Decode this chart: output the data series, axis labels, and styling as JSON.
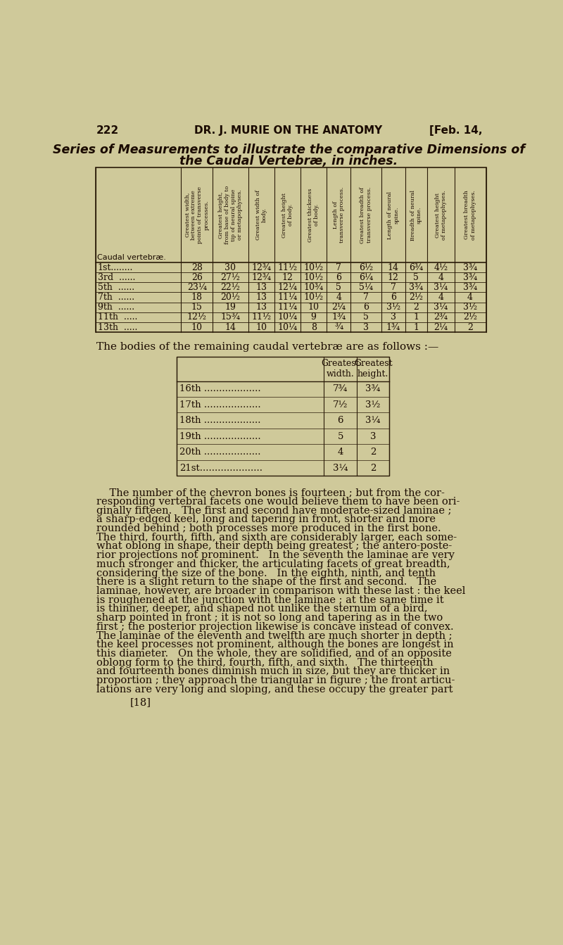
{
  "background_color": "#cfc99a",
  "page_num": "222",
  "header_center": "DR. J. MURIE ON THE ANATOMY",
  "header_right": "[Feb. 14,",
  "title_line1": "Series of Measurements to illustrate the comparative Dimensions of",
  "title_line2": "the Caudal Vertebræ, in inches.",
  "col_headers": [
    "Greatest width,\nbetween extreme\npoints of transverse\nprocesses.",
    "Greatest height,\nfrom base of body to\ntip of neural spine\nor metapophyses.",
    "Greatest width of\nbody.",
    "Greatest height\nof body.",
    "Greatest thickness\nof body.",
    "Length of\ntransverse process.",
    "Greatest breadth of\ntransverse process.",
    "Length of neural\nspine.",
    "Breadth of neural\nspine.",
    "Greatest height\nof metapophyses.",
    "Greatest breadth\nof metapophyses."
  ],
  "row_label": "Caudal vertebræ.",
  "table_rows": [
    [
      "1st........",
      "28",
      "30",
      "12¾",
      "11½",
      "10½",
      "7",
      "6½",
      "14",
      "6¾",
      "4½",
      "3¾"
    ],
    [
      "3rd  ......",
      "26",
      "27½",
      "12¾",
      "12",
      "10½",
      "6",
      "6¼",
      "12",
      "5",
      "4",
      "3¾"
    ],
    [
      "5th  ......",
      "23¼",
      "22½",
      "13",
      "12¼",
      "10¾",
      "5",
      "5¼",
      "7",
      "3¾",
      "3¼",
      "3¾"
    ],
    [
      "7th  ......",
      "18",
      "20½",
      "13",
      "11¼",
      "10½",
      "4",
      "7",
      "6",
      "2½",
      "4",
      "4"
    ],
    [
      "9th  ......",
      "15",
      "19",
      "13",
      "11¼",
      "10",
      "2¼",
      "6",
      "3½",
      "2",
      "3¼",
      "3½"
    ],
    [
      "11th  .....",
      "12½",
      "15¾",
      "11½",
      "10¼",
      "9",
      "1¾",
      "5",
      "3",
      "1",
      "2¾",
      "2½"
    ],
    [
      "13th  .....",
      "10",
      "14",
      "10",
      "10¼",
      "8",
      "¾",
      "3",
      "1¾",
      "1",
      "2¼",
      "2"
    ]
  ],
  "bodies_text": "The bodies of the remaining caudal vertebræ are as follows :—",
  "small_table_headers": [
    "Greatest\nwidth.",
    "Greatest\nheight."
  ],
  "small_table_rows": [
    [
      "16th ...................",
      "7¾",
      "3¾"
    ],
    [
      "17th ...................",
      "7½",
      "3½"
    ],
    [
      "18th ...................",
      "6",
      "3¼"
    ],
    [
      "19th ...................",
      "5",
      "3"
    ],
    [
      "20th ...................",
      "4",
      "2"
    ],
    [
      "21st.....................",
      "3¼",
      "2"
    ]
  ],
  "body_text_lines": [
    "    The number of the chevron bones is fourteen ; but from the cor-",
    "responding vertebral facets one would believe them to have been ori-",
    "ginally fifteen.   The first and second have moderate-sized laminae ;",
    "a sharp-edged keel, long and tapering in front, shorter and more",
    "rounded behind ; both processes more produced in the first bone.",
    "The third, fourth, fifth, and sixth are considerably larger, each some-",
    "what oblong in shape, their depth being greatest ; the antero-poste-",
    "rior projections not prominent.   In the seventh the laminae are very",
    "much stronger and thicker, the articulating facets of great breadth,",
    "considering the size of the bone.   In the eighth, ninth, and tenth",
    "there is a slight return to the shape of the first and second.   The",
    "laminae, however, are broader in comparison with these last : the keel",
    "is roughened at the junction with the laminae ; at the same time it",
    "is thinner, deeper, and shaped not unlike the sternum of a bird,",
    "sharp pointed in front ; it is not so long and tapering as in the two",
    "first ; the posterior projection likewise is concave instead of convex.",
    "The laminae of the eleventh and twelfth are much shorter in depth ;",
    "the keel processes not prominent, although the bones are longest in",
    "this diameter.   On the whole, they are solidified, and of an opposite",
    "oblong form to the third, fourth, fifth, and sixth.   The thirteenth",
    "and fourteenth bones diminish much in size, but they are thicker in",
    "proportion ; they approach the triangular in figure ; the front articu-",
    "lations are very long and sloping, and these occupy the greater part"
  ],
  "page_footer": "[18]"
}
